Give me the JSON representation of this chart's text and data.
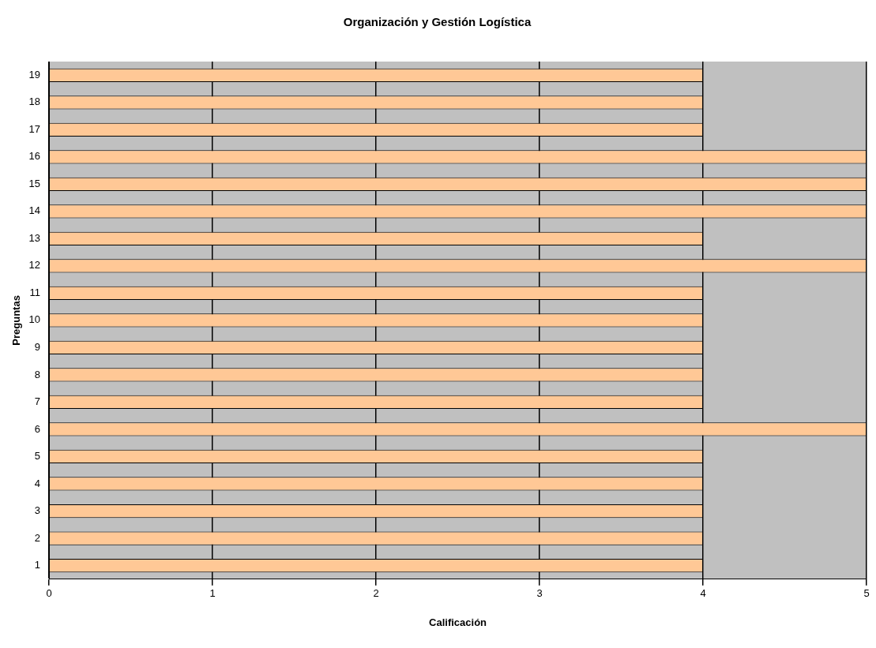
{
  "chart_data": {
    "type": "bar",
    "orientation": "horizontal",
    "title": "Organización y Gestión Logística",
    "xlabel": "Calificación",
    "ylabel": "Preguntas",
    "categories": [
      "19",
      "18",
      "17",
      "16",
      "15",
      "14",
      "13",
      "12",
      "11",
      "10",
      "9",
      "8",
      "7",
      "6",
      "5",
      "4",
      "3",
      "2",
      "1"
    ],
    "values": [
      4,
      4,
      4,
      5,
      5,
      5,
      4,
      5,
      4,
      4,
      4,
      4,
      4,
      5,
      4,
      4,
      4,
      4,
      4
    ],
    "color": "#ffc896",
    "xlim": [
      0,
      5
    ],
    "xticks": [
      0,
      1,
      2,
      3,
      4,
      5
    ],
    "grid": "x",
    "legend": false
  }
}
